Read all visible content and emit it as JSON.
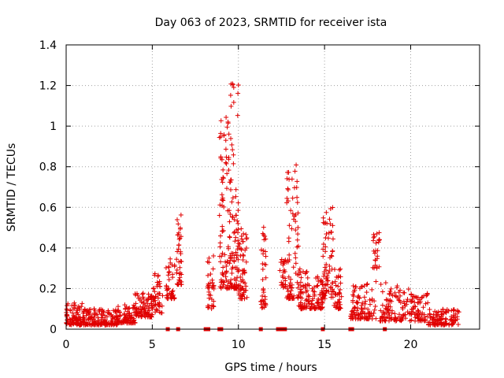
{
  "chart_data": {
    "type": "scatter",
    "title": "Day 063 of 2023, SRMTID for receiver ista",
    "xlabel": "GPS time / hours",
    "ylabel": "SRMTID / TECUs",
    "xlim": [
      0,
      24
    ],
    "ylim": [
      0,
      1.4
    ],
    "xticks": [
      0,
      5,
      10,
      15,
      20
    ],
    "xtick_labels": [
      "0",
      "5",
      "10",
      "15",
      "20"
    ],
    "yticks": [
      0,
      0.2,
      0.4,
      0.6,
      0.8,
      1.0,
      1.2,
      1.4
    ],
    "ytick_labels": [
      "0",
      "0.2",
      "0.4",
      "0.6",
      "0.8",
      "1",
      "1.2",
      "1.4"
    ],
    "grid": true,
    "marker": "+",
    "color": "#e00000",
    "series": [
      {
        "name": "ista",
        "clusters": [
          {
            "x": [
              0.0,
              1.0
            ],
            "y": [
              0.02,
              0.13
            ],
            "n": 90
          },
          {
            "x": [
              1.0,
              2.0
            ],
            "y": [
              0.02,
              0.1
            ],
            "n": 80
          },
          {
            "x": [
              2.0,
              3.0
            ],
            "y": [
              0.02,
              0.1
            ],
            "n": 80
          },
          {
            "x": [
              3.0,
              4.0
            ],
            "y": [
              0.03,
              0.12
            ],
            "n": 80
          },
          {
            "x": [
              4.0,
              5.0
            ],
            "y": [
              0.06,
              0.18
            ],
            "n": 90
          },
          {
            "x": [
              5.0,
              5.6
            ],
            "y": [
              0.08,
              0.28
            ],
            "n": 45
          },
          {
            "x": [
              5.8,
              6.3
            ],
            "y": [
              0.15,
              0.35
            ],
            "n": 40
          },
          {
            "x": [
              6.4,
              6.7
            ],
            "y": [
              0.22,
              0.61
            ],
            "n": 40
          },
          {
            "x": [
              8.2,
              8.6
            ],
            "y": [
              0.1,
              0.38
            ],
            "n": 35
          },
          {
            "x": [
              8.9,
              9.5
            ],
            "y": [
              0.2,
              1.05
            ],
            "n": 90
          },
          {
            "x": [
              9.5,
              10.0
            ],
            "y": [
              0.2,
              1.24
            ],
            "n": 90
          },
          {
            "x": [
              10.0,
              10.5
            ],
            "y": [
              0.15,
              0.5
            ],
            "n": 60
          },
          {
            "x": [
              11.3,
              11.6
            ],
            "y": [
              0.1,
              0.52
            ],
            "n": 35
          },
          {
            "x": [
              12.4,
              12.8
            ],
            "y": [
              0.2,
              0.35
            ],
            "n": 25
          },
          {
            "x": [
              12.8,
              13.5
            ],
            "y": [
              0.15,
              0.82
            ],
            "n": 80
          },
          {
            "x": [
              13.5,
              14.0
            ],
            "y": [
              0.1,
              0.3
            ],
            "n": 50
          },
          {
            "x": [
              14.0,
              14.9
            ],
            "y": [
              0.1,
              0.28
            ],
            "n": 70
          },
          {
            "x": [
              14.9,
              15.5
            ],
            "y": [
              0.15,
              0.61
            ],
            "n": 70
          },
          {
            "x": [
              15.5,
              16.0
            ],
            "y": [
              0.1,
              0.3
            ],
            "n": 40
          },
          {
            "x": [
              16.5,
              18.0
            ],
            "y": [
              0.05,
              0.24
            ],
            "n": 100
          },
          {
            "x": [
              17.8,
              18.2
            ],
            "y": [
              0.3,
              0.49
            ],
            "n": 25
          },
          {
            "x": [
              18.2,
              20.0
            ],
            "y": [
              0.04,
              0.23
            ],
            "n": 110
          },
          {
            "x": [
              20.0,
              21.0
            ],
            "y": [
              0.04,
              0.18
            ],
            "n": 70
          },
          {
            "x": [
              21.0,
              22.8
            ],
            "y": [
              0.02,
              0.1
            ],
            "n": 110
          }
        ],
        "zero_markers_x": [
          5.9,
          6.5,
          8.1,
          8.25,
          8.9,
          9.0,
          11.3,
          12.3,
          12.5,
          12.7,
          14.9,
          16.5,
          16.6,
          18.5
        ]
      }
    ]
  }
}
